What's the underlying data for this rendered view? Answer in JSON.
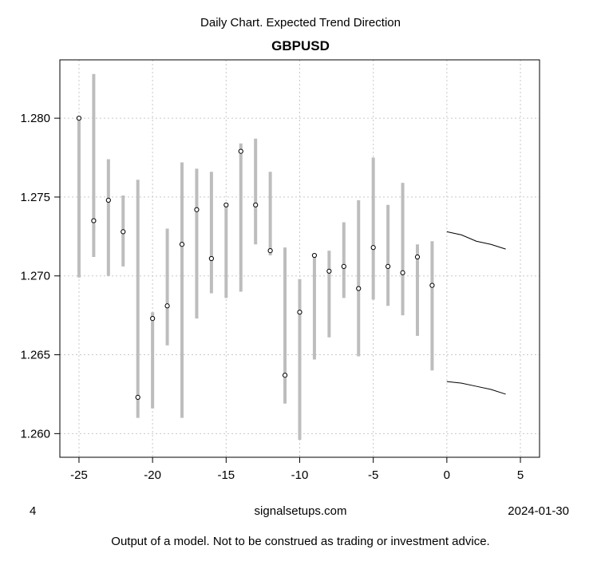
{
  "header": {
    "suptitle": "Daily Chart. Expected Trend Direction",
    "title": "GBPUSD"
  },
  "footer": {
    "left": "4",
    "center": "signalsetups.com",
    "right": "2024-01-30",
    "disclaimer": "Output of a model. Not to be construed as trading or investment advice."
  },
  "chart_data": {
    "type": "scatter",
    "title": "GBPUSD",
    "xlim": [
      -26.3,
      6.3
    ],
    "ylim": [
      1.2585,
      1.2837
    ],
    "x_ticks": [
      -25,
      -20,
      -15,
      -10,
      -5,
      0,
      5
    ],
    "y_ticks": [
      1.26,
      1.265,
      1.27,
      1.275,
      1.28
    ],
    "x_tick_labels": [
      "-25",
      "-20",
      "-15",
      "-10",
      "-5",
      "0",
      "5"
    ],
    "y_tick_labels": [
      "1.260",
      "1.265",
      "1.270",
      "1.275",
      "1.280"
    ],
    "grid": true,
    "colors": {
      "range_bar": "#bdbdbd",
      "grid": "#c8c8c8",
      "line": "#000000",
      "point_fill": "#ffffff"
    },
    "ranges": [
      {
        "x": -25,
        "low": 1.2699,
        "high": 1.28
      },
      {
        "x": -24,
        "low": 1.2712,
        "high": 1.2828
      },
      {
        "x": -23,
        "low": 1.27,
        "high": 1.2774
      },
      {
        "x": -22,
        "low": 1.2706,
        "high": 1.2751
      },
      {
        "x": -21,
        "low": 1.261,
        "high": 1.2761
      },
      {
        "x": -20,
        "low": 1.2616,
        "high": 1.2677
      },
      {
        "x": -19,
        "low": 1.2656,
        "high": 1.273
      },
      {
        "x": -18,
        "low": 1.261,
        "high": 1.2772
      },
      {
        "x": -17,
        "low": 1.2673,
        "high": 1.2768
      },
      {
        "x": -16,
        "low": 1.2689,
        "high": 1.2766
      },
      {
        "x": -15,
        "low": 1.2686,
        "high": 1.2745
      },
      {
        "x": -14,
        "low": 1.269,
        "high": 1.2784
      },
      {
        "x": -13,
        "low": 1.272,
        "high": 1.2787
      },
      {
        "x": -12,
        "low": 1.2713,
        "high": 1.2766
      },
      {
        "x": -11,
        "low": 1.2619,
        "high": 1.2718
      },
      {
        "x": -10,
        "low": 1.2596,
        "high": 1.2698
      },
      {
        "x": -9,
        "low": 1.2647,
        "high": 1.2713
      },
      {
        "x": -8,
        "low": 1.2661,
        "high": 1.2716
      },
      {
        "x": -7,
        "low": 1.2686,
        "high": 1.2734
      },
      {
        "x": -6,
        "low": 1.2649,
        "high": 1.2748
      },
      {
        "x": -5,
        "low": 1.2685,
        "high": 1.2775
      },
      {
        "x": -4,
        "low": 1.2681,
        "high": 1.2745
      },
      {
        "x": -3,
        "low": 1.2675,
        "high": 1.2759
      },
      {
        "x": -2,
        "low": 1.2662,
        "high": 1.272
      },
      {
        "x": -1,
        "low": 1.264,
        "high": 1.2722
      }
    ],
    "points": [
      {
        "x": -25,
        "y": 1.28
      },
      {
        "x": -24,
        "y": 1.2735
      },
      {
        "x": -23,
        "y": 1.2748
      },
      {
        "x": -22,
        "y": 1.2728
      },
      {
        "x": -21,
        "y": 1.2623
      },
      {
        "x": -20,
        "y": 1.2673
      },
      {
        "x": -19,
        "y": 1.2681
      },
      {
        "x": -18,
        "y": 1.272
      },
      {
        "x": -17,
        "y": 1.2742
      },
      {
        "x": -16,
        "y": 1.2711
      },
      {
        "x": -15,
        "y": 1.2745
      },
      {
        "x": -14,
        "y": 1.2779
      },
      {
        "x": -13,
        "y": 1.2745
      },
      {
        "x": -12,
        "y": 1.2716
      },
      {
        "x": -11,
        "y": 1.2637
      },
      {
        "x": -10,
        "y": 1.2677
      },
      {
        "x": -9,
        "y": 1.2713
      },
      {
        "x": -8,
        "y": 1.2703
      },
      {
        "x": -7,
        "y": 1.2706
      },
      {
        "x": -6,
        "y": 1.2692
      },
      {
        "x": -5,
        "y": 1.2718
      },
      {
        "x": -4,
        "y": 1.2706
      },
      {
        "x": -3,
        "y": 1.2702
      },
      {
        "x": -2,
        "y": 1.2712
      },
      {
        "x": -1,
        "y": 1.2694
      }
    ],
    "series": [
      {
        "x": [
          0,
          1,
          2,
          3,
          4
        ],
        "values": [
          1.2728,
          1.2726,
          1.2722,
          1.272,
          1.2717
        ]
      },
      {
        "x": [
          0,
          1,
          2,
          3,
          4
        ],
        "values": [
          1.2633,
          1.2632,
          1.263,
          1.2628,
          1.2625
        ]
      }
    ]
  }
}
